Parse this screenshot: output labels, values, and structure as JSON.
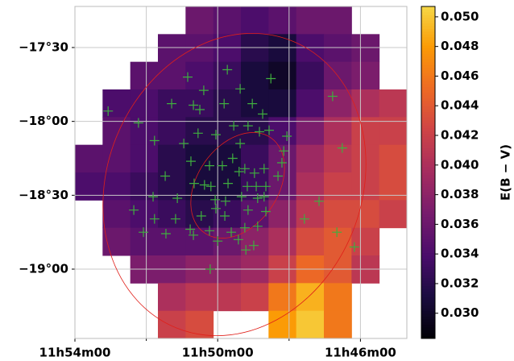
{
  "chart_data": {
    "type": "heatmap",
    "colorbar_label": "E(B − V)",
    "colormap": "inferno",
    "clim": [
      0.0283,
      0.0507
    ],
    "cticks": [
      {
        "value": 0.03,
        "label": "0.030"
      },
      {
        "value": 0.032,
        "label": "0.032"
      },
      {
        "value": 0.034,
        "label": "0.034"
      },
      {
        "value": 0.036,
        "label": "0.036"
      },
      {
        "value": 0.038,
        "label": "0.038"
      },
      {
        "value": 0.04,
        "label": "0.040"
      },
      {
        "value": 0.042,
        "label": "0.042"
      },
      {
        "value": 0.044,
        "label": "0.044"
      },
      {
        "value": 0.046,
        "label": "0.046"
      },
      {
        "value": 0.048,
        "label": "0.048"
      },
      {
        "value": 0.05,
        "label": "0.050"
      }
    ],
    "xlim": [
      714,
      704.7
    ],
    "ylim": [
      -19.469,
      -17.222
    ],
    "xticks": [
      {
        "value": 714,
        "label": "11h54m00"
      },
      {
        "value": 710,
        "label": "11h50m00"
      },
      {
        "value": 706,
        "label": "11h46m00"
      }
    ],
    "xminor": [
      712,
      708
    ],
    "yticks": [
      {
        "value": -17.5,
        "label": "−17°30"
      },
      {
        "value": -18,
        "label": "−18°00"
      },
      {
        "value": -18.5,
        "label": "−18°30"
      },
      {
        "value": -19,
        "label": "−19°00"
      }
    ],
    "grid": true,
    "z": [
      [
        null,
        null,
        null,
        null,
        0.036,
        0.035,
        0.034,
        0.035,
        0.036,
        0.036,
        null,
        null
      ],
      [
        null,
        null,
        null,
        0.035,
        0.035,
        0.034,
        0.032,
        0.031,
        0.034,
        0.035,
        0.036,
        null
      ],
      [
        null,
        null,
        0.035,
        0.035,
        0.034,
        0.033,
        0.031,
        0.03,
        0.033,
        0.036,
        0.037,
        null
      ],
      [
        null,
        0.034,
        0.034,
        0.033,
        0.033,
        0.032,
        0.031,
        0.031,
        0.034,
        0.038,
        0.04,
        0.041
      ],
      [
        null,
        0.035,
        0.034,
        0.033,
        0.032,
        0.032,
        0.032,
        0.034,
        0.037,
        0.04,
        0.042,
        0.042
      ],
      [
        0.035,
        0.035,
        0.034,
        0.032,
        0.031,
        0.031,
        0.033,
        0.036,
        0.039,
        0.041,
        0.042,
        0.043
      ],
      [
        0.034,
        0.034,
        0.033,
        0.032,
        0.031,
        0.031,
        0.033,
        0.036,
        0.04,
        0.042,
        0.042,
        0.043
      ],
      [
        null,
        0.035,
        0.034,
        0.033,
        0.032,
        0.033,
        0.035,
        0.038,
        0.041,
        0.043,
        0.043,
        0.042
      ],
      [
        null,
        0.036,
        0.035,
        0.035,
        0.035,
        0.036,
        0.038,
        0.04,
        0.043,
        0.044,
        0.042,
        null
      ],
      [
        null,
        null,
        0.037,
        0.037,
        0.038,
        0.038,
        0.039,
        0.042,
        0.045,
        0.044,
        0.041,
        null
      ],
      [
        null,
        null,
        null,
        0.04,
        0.041,
        0.041,
        0.042,
        0.046,
        0.049,
        0.046,
        null,
        null
      ],
      [
        null,
        null,
        null,
        0.042,
        0.043,
        null,
        null,
        0.048,
        0.05,
        0.046,
        null,
        null
      ]
    ],
    "points": {
      "color": "#3fae3f",
      "x": [
        713.07,
        710.84,
        709.73,
        708.51,
        709.37,
        712.22,
        710.39,
        711.29,
        710.68,
        710.5,
        709.82,
        709.03,
        706.78,
        708.74,
        709.55,
        709.15,
        708.83,
        711.77,
        710.55,
        710.05,
        709.37,
        708.56,
        708.06,
        708.15,
        706.51,
        711.47,
        710.75,
        710.23,
        709.87,
        709.58,
        709.4,
        709.24,
        708.97,
        708.7,
        708.2,
        708.31,
        710.66,
        710.37,
        710.19,
        709.71,
        709.17,
        708.92,
        708.65,
        708.7,
        711.81,
        711.13,
        710.07,
        709.78,
        709.33,
        708.88,
        707.16,
        712.35,
        711.77,
        711.18,
        710.46,
        709.8,
        709.15,
        708.65,
        707.57,
        710.77,
        710.23,
        709.62,
        709.24,
        708.88,
        712.08,
        711.45,
        710.68,
        710.0,
        709.42,
        709.21,
        708.99,
        706.17,
        706.66,
        710.21,
        710.05,
        710.95
      ],
      "y": [
        -17.93,
        -17.7,
        -17.65,
        -17.71,
        -17.78,
        -18.01,
        -17.79,
        -17.88,
        -17.89,
        -17.92,
        -17.88,
        -17.88,
        -17.83,
        -17.95,
        -18.03,
        -18.03,
        -18.07,
        -18.13,
        -18.08,
        -18.09,
        -18.15,
        -18.06,
        -18.1,
        -18.2,
        -18.18,
        -18.37,
        -18.27,
        -18.3,
        -18.3,
        -18.25,
        -18.34,
        -18.32,
        -18.35,
        -18.32,
        -18.28,
        -18.37,
        -18.42,
        -18.43,
        -18.44,
        -18.42,
        -18.44,
        -18.44,
        -18.44,
        -18.51,
        -18.51,
        -18.52,
        -18.53,
        -18.54,
        -18.51,
        -18.52,
        -18.54,
        -18.6,
        -18.66,
        -18.66,
        -18.64,
        -18.64,
        -18.6,
        -18.61,
        -18.66,
        -18.73,
        -18.74,
        -18.75,
        -18.72,
        -18.71,
        -18.75,
        -18.76,
        -18.77,
        -18.81,
        -18.8,
        -18.87,
        -18.84,
        -18.85,
        -18.75,
        -19.0,
        -18.59,
        -18.15
      ]
    }
  }
}
